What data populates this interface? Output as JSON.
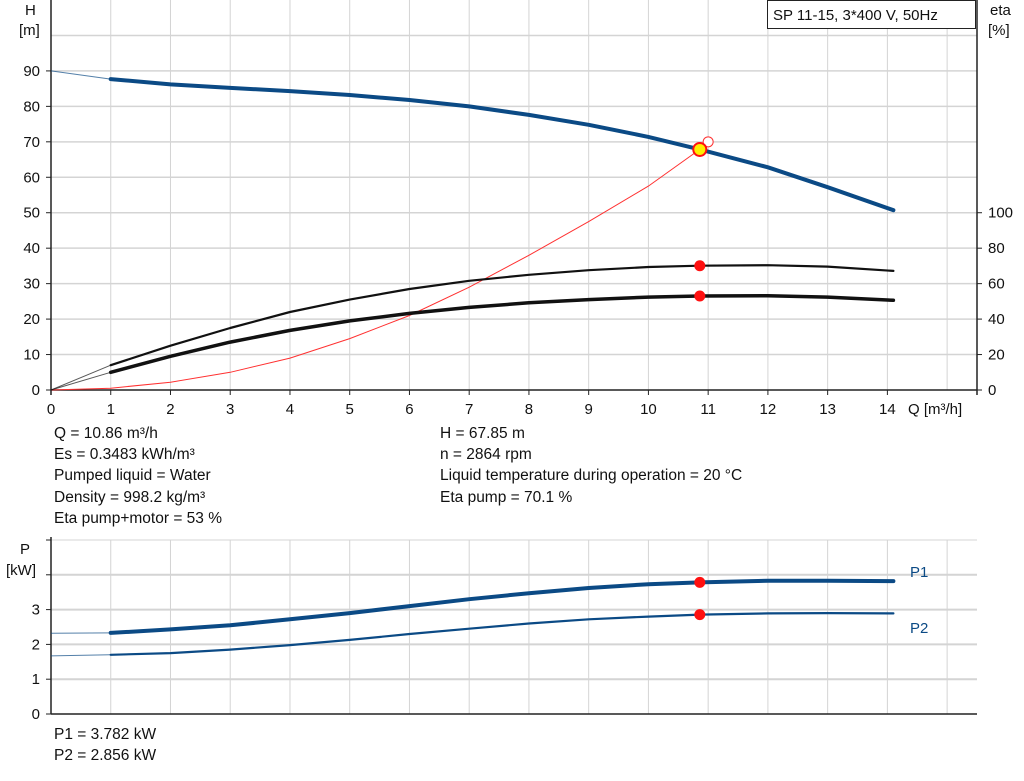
{
  "chart_data": [
    {
      "type": "line",
      "title_box": "SP 11-15, 3*400 V, 50Hz",
      "ylabel_left": "H",
      "ylabel_left_unit": "[m]",
      "ylabel_right": "eta",
      "ylabel_right_unit": "[%]",
      "xlabel": "Q [m³/h]",
      "xlim": [
        0,
        15.5
      ],
      "ylim": [
        0,
        110
      ],
      "eta_lim": [
        0,
        220
      ],
      "grid": true,
      "x_ticks": [
        "0",
        "1",
        "2",
        "3",
        "4",
        "5",
        "6",
        "7",
        "8",
        "9",
        "10",
        "11",
        "12",
        "13",
        "14"
      ],
      "y_ticks": [
        "0",
        "10",
        "20",
        "30",
        "40",
        "50",
        "60",
        "70",
        "80",
        "90"
      ],
      "eta_ticks": [
        "0",
        "20",
        "40",
        "60",
        "80",
        "100"
      ],
      "series": [
        {
          "key": "H",
          "axis": "H",
          "color": "#0b4a85",
          "x": [
            0,
            1,
            2,
            3,
            4,
            5,
            6,
            7,
            8,
            9,
            10,
            10.86,
            12,
            13,
            14.1
          ],
          "y": [
            90,
            87.7,
            86.2,
            85.2,
            84.3,
            83.2,
            81.8,
            80,
            77.6,
            74.8,
            71.4,
            67.85,
            62.8,
            57.2,
            50.7
          ]
        },
        {
          "key": "eta_pump",
          "axis": "eta",
          "color": "#111111",
          "x": [
            0,
            1,
            2,
            3,
            4,
            5,
            6,
            7,
            8,
            9,
            10,
            10.86,
            12,
            13,
            14.1
          ],
          "y": [
            0,
            14,
            25,
            35,
            44,
            51,
            57,
            61.6,
            65,
            67.6,
            69.4,
            70.1,
            70.4,
            69.6,
            67.2
          ]
        },
        {
          "key": "eta_total",
          "axis": "eta",
          "color": "#111111",
          "x": [
            0,
            1,
            2,
            3,
            4,
            5,
            6,
            7,
            8,
            9,
            10,
            10.86,
            12,
            13,
            14.1
          ],
          "y": [
            0,
            10,
            19,
            27,
            33.6,
            39,
            43.2,
            46.6,
            49.2,
            51,
            52.4,
            53,
            53.2,
            52.4,
            50.6
          ]
        },
        {
          "key": "red_curve",
          "axis": "H",
          "color": "#ff3030",
          "x": [
            0,
            1,
            2,
            3,
            4,
            5,
            6,
            7,
            8,
            9,
            10,
            10.86,
            11
          ],
          "y": [
            0,
            0.5,
            2.2,
            5,
            9,
            14.5,
            21,
            29,
            38,
            47.5,
            57.5,
            67.85,
            70
          ]
        }
      ],
      "duty_point": {
        "Q": 10.86,
        "H": 67.85
      }
    },
    {
      "type": "line",
      "ylabel": "P",
      "ylabel_unit": "[kW]",
      "xlim": [
        0,
        15.5
      ],
      "ylim": [
        0,
        5
      ],
      "grid": true,
      "y_ticks": [
        "0",
        "1",
        "2",
        "3"
      ],
      "series": [
        {
          "name": "P1",
          "color": "#0b4a85",
          "x": [
            0,
            1,
            2,
            3,
            4,
            5,
            6,
            7,
            8,
            9,
            10,
            10.86,
            12,
            13,
            14.1
          ],
          "y": [
            2.32,
            2.33,
            2.43,
            2.55,
            2.72,
            2.9,
            3.1,
            3.3,
            3.47,
            3.62,
            3.73,
            3.782,
            3.83,
            3.83,
            3.82
          ]
        },
        {
          "name": "P2",
          "color": "#0b4a85",
          "x": [
            0,
            1,
            2,
            3,
            4,
            5,
            6,
            7,
            8,
            9,
            10,
            10.86,
            12,
            13,
            14.1
          ],
          "y": [
            1.67,
            1.7,
            1.75,
            1.85,
            1.98,
            2.13,
            2.3,
            2.45,
            2.6,
            2.72,
            2.8,
            2.856,
            2.89,
            2.9,
            2.89
          ]
        }
      ]
    }
  ],
  "info": {
    "q": "Q = 10.86 m³/h",
    "es": "Es = 0.3483 kWh/m³",
    "liquid": "Pumped liquid = Water",
    "density": "Density = 998.2 kg/m³",
    "eta_total": "Eta pump+motor = 53 %",
    "h": "H = 67.85 m",
    "n": "n = 2864 rpm",
    "temp": "Liquid temperature during operation = 20 °C",
    "eta_pump": "Eta pump = 70.1 %",
    "p1": "P1 = 3.782 kW",
    "p2": "P2 = 2.856 kW"
  }
}
